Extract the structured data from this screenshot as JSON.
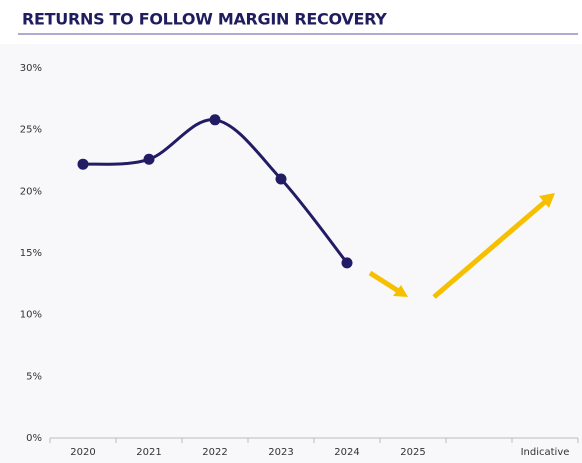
{
  "chart_data": {
    "type": "line",
    "title": "RETURNS TO FOLLOW MARGIN RECOVERY",
    "categories": [
      "2020",
      "2021",
      "2022",
      "2023",
      "2024",
      "2025",
      null,
      "Indicative"
    ],
    "series": [
      {
        "name": null,
        "color": "#211c64",
        "values": [
          22.2,
          22.6,
          25.8,
          21.0,
          14.2,
          null,
          null,
          null
        ]
      }
    ],
    "ylim": [
      0,
      30
    ],
    "yticks": [
      {
        "value": 0,
        "label": "0%"
      },
      {
        "value": 5,
        "label": "5%"
      },
      {
        "value": 10,
        "label": "10%"
      },
      {
        "value": 15,
        "label": "15%"
      },
      {
        "value": 20,
        "label": "20%"
      },
      {
        "value": 25,
        "label": "25%"
      },
      {
        "value": 30,
        "label": "30%"
      }
    ],
    "grid": false
  }
}
